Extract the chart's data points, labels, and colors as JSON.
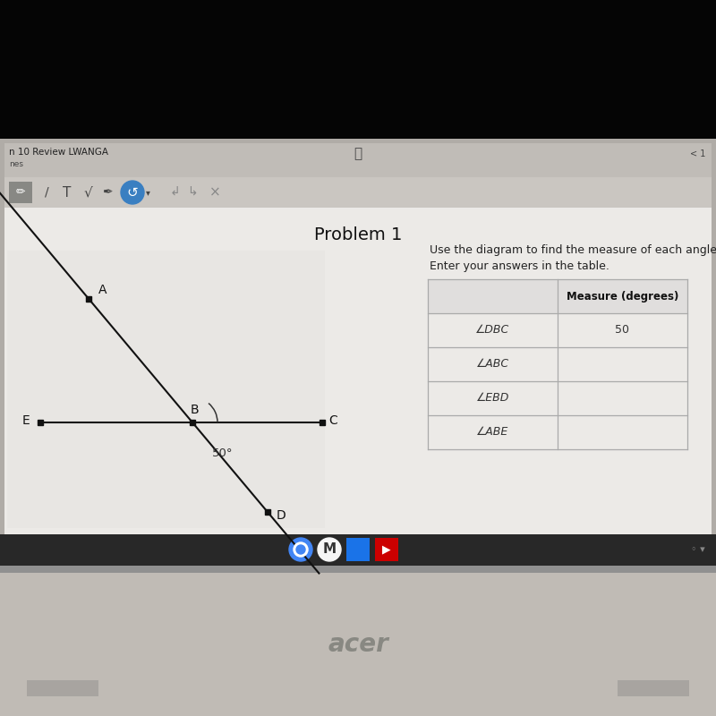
{
  "title": "Problem 1",
  "instruction_line1": "Use the diagram to find the measure of each angle.",
  "instruction_line2": "Enter your answers in the table.",
  "table_header_col2": "Measure (degrees)",
  "table_rows": [
    [
      "∠DBC",
      "50"
    ],
    [
      "∠ABC",
      ""
    ],
    [
      "∠EBD",
      ""
    ],
    [
      "∠ABE",
      ""
    ]
  ],
  "angle_label": "50°",
  "bg_top": "#0a0a0a",
  "bg_screen_frame": "#b8b4ae",
  "bg_browser_bar": "#c5c1bc",
  "bg_tab": "#d2cec9",
  "bg_toolbar": "#d8d4cf",
  "bg_content": "#eceae7",
  "bg_bottom": "#b0aba5",
  "taskbar_color": "#2b2b2b",
  "font_color": "#222222",
  "table_line_color": "#aaaaaa",
  "diagram_line_color": "#111111",
  "point_color": "#111111",
  "acer_color": "#888882"
}
